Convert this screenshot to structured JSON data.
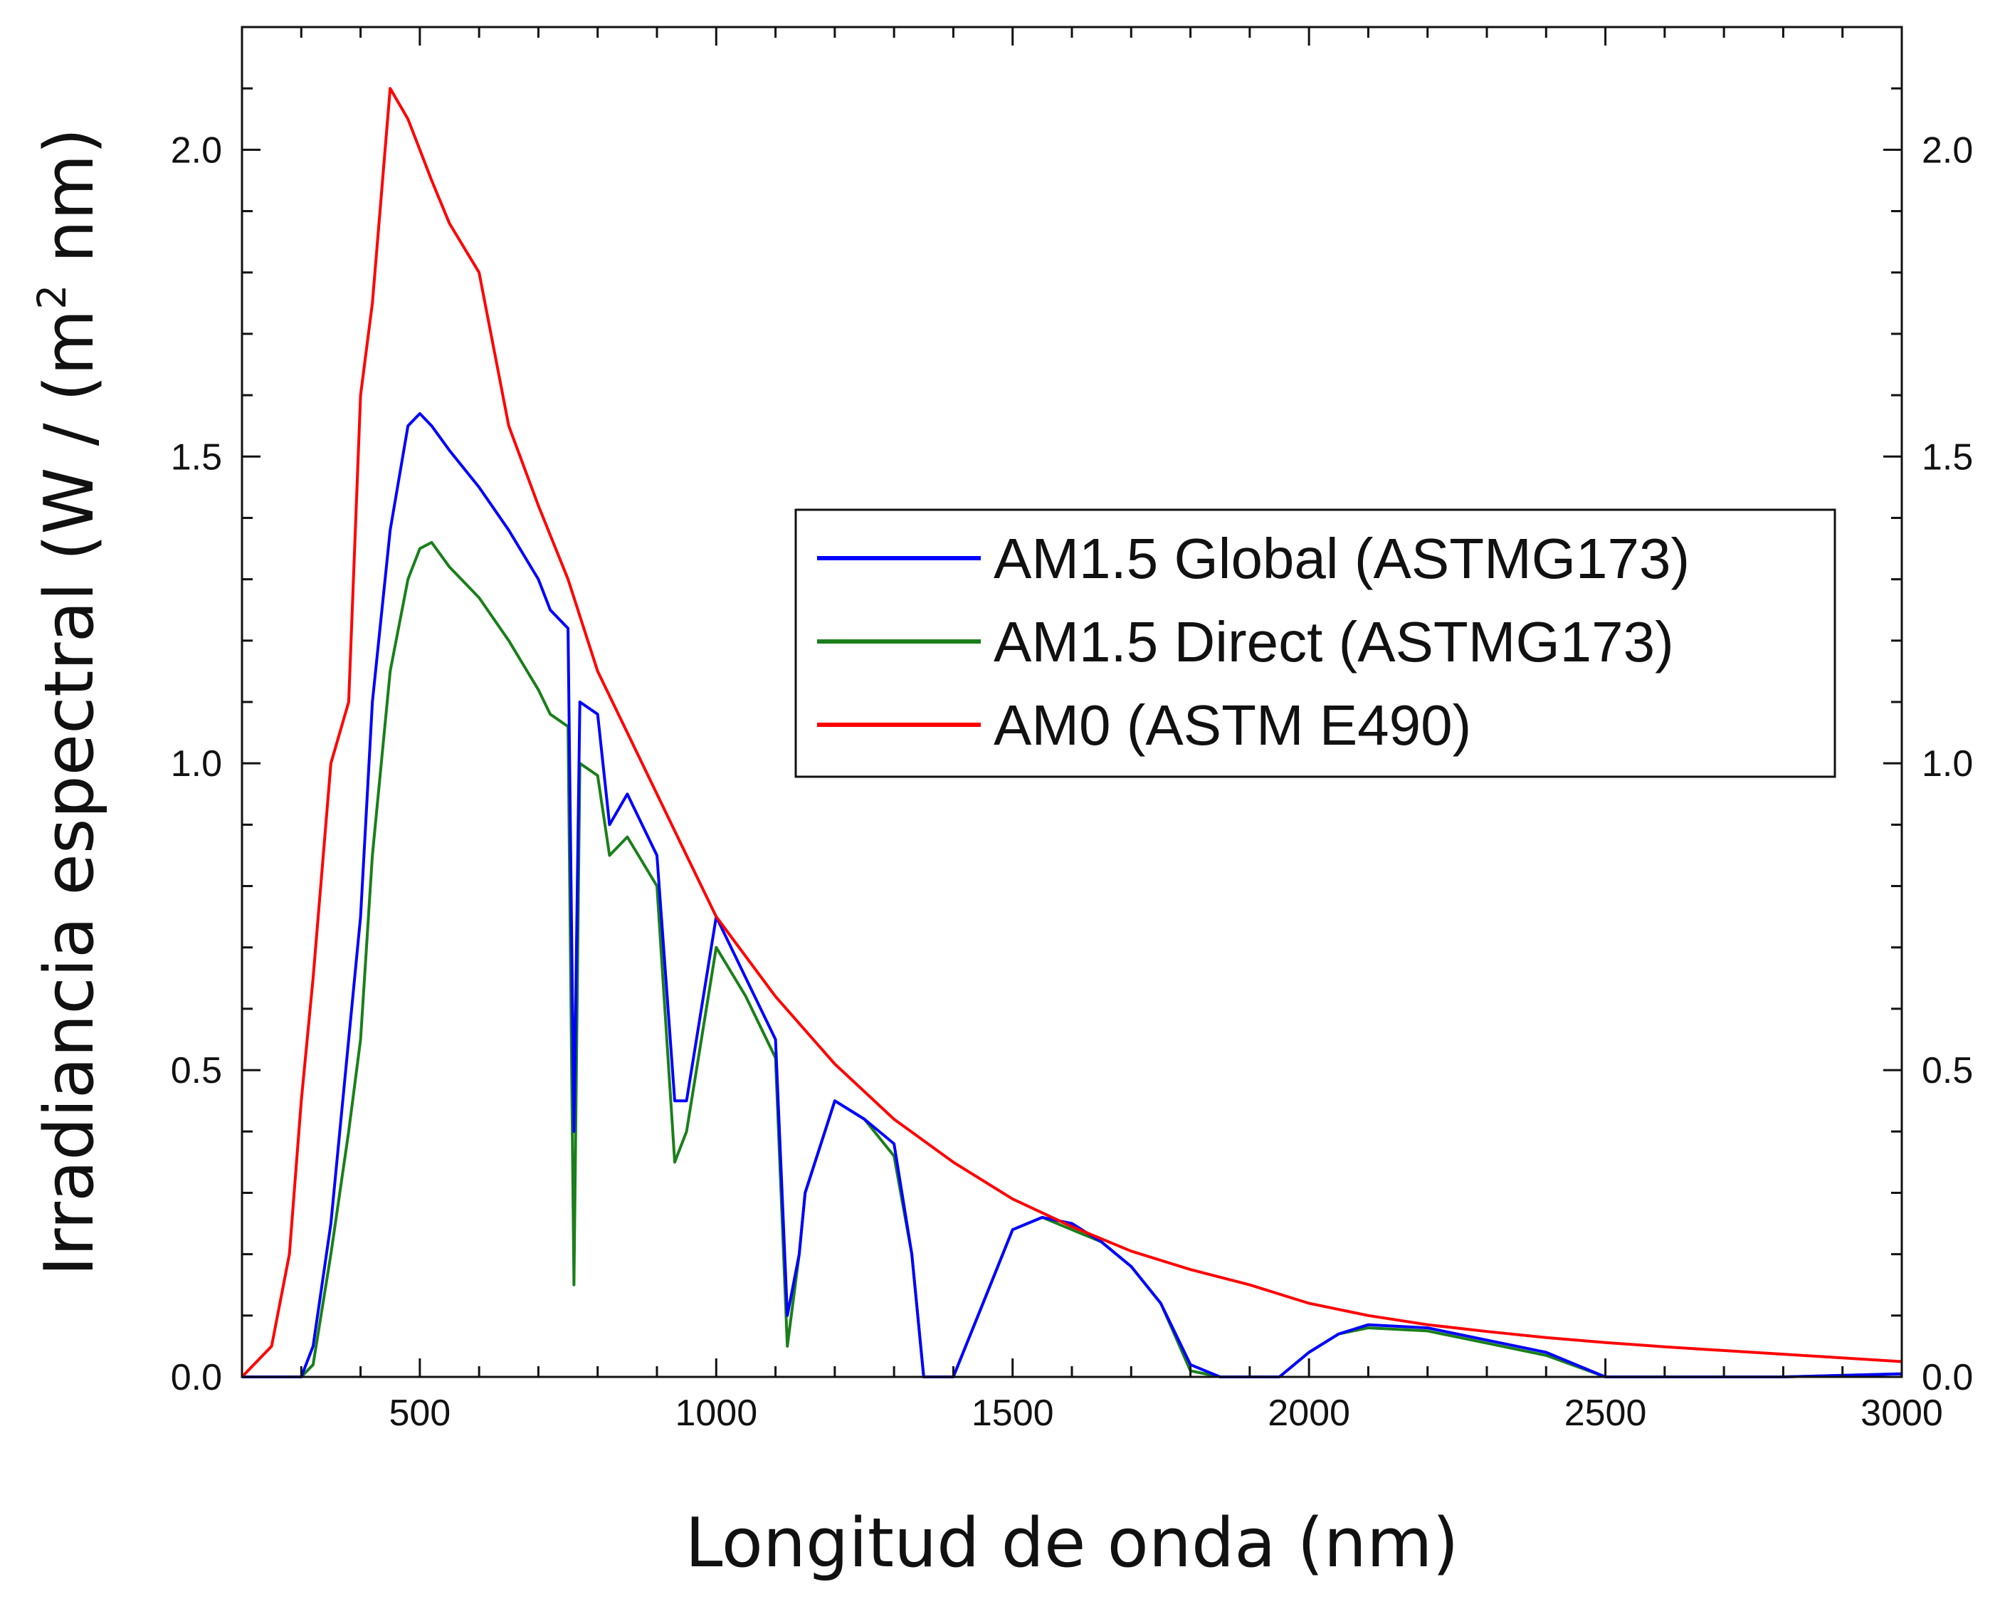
{
  "chart_data": {
    "type": "line",
    "xlabel": "Longitud de onda (nm)",
    "ylabel_main": "Irradiancia espectral (W / (m",
    "ylabel_sup": "2",
    "ylabel_end": " nm)",
    "xlim": [
      200,
      3000
    ],
    "ylim": [
      0,
      2.2
    ],
    "x_ticks": [
      500,
      1000,
      1500,
      2000,
      2500,
      3000
    ],
    "x_tick_labels": [
      "500",
      "1000",
      "1500",
      "2000",
      "2500",
      "3000"
    ],
    "y_ticks": [
      0.0,
      0.5,
      1.0,
      1.5,
      2.0
    ],
    "y_tick_labels": [
      "0.0",
      "0.5",
      "1.0",
      "1.5",
      "2.0"
    ],
    "y_tick_labels_right": [
      "0.0",
      "0.5",
      "1.0",
      "1.5",
      "2.0"
    ],
    "grid": false,
    "legend_position": "upper-right",
    "series": [
      {
        "name": "AM1.5 Global (ASTMG173)",
        "color": "#0000ff",
        "x": [
          200,
          280,
          300,
          320,
          350,
          380,
          400,
          420,
          450,
          480,
          500,
          520,
          550,
          600,
          650,
          700,
          720,
          750,
          760,
          770,
          800,
          820,
          850,
          900,
          930,
          950,
          1000,
          1050,
          1100,
          1120,
          1140,
          1150,
          1200,
          1250,
          1300,
          1330,
          1350,
          1400,
          1450,
          1500,
          1550,
          1600,
          1650,
          1700,
          1750,
          1800,
          1850,
          1900,
          1950,
          2000,
          2050,
          2100,
          2200,
          2300,
          2400,
          2500,
          2600,
          2800,
          3000
        ],
        "y": [
          0,
          0,
          0,
          0.05,
          0.25,
          0.55,
          0.75,
          1.1,
          1.38,
          1.55,
          1.57,
          1.55,
          1.51,
          1.45,
          1.38,
          1.3,
          1.25,
          1.22,
          0.4,
          1.1,
          1.08,
          0.9,
          0.95,
          0.85,
          0.45,
          0.45,
          0.75,
          0.65,
          0.55,
          0.1,
          0.2,
          0.3,
          0.45,
          0.42,
          0.38,
          0.2,
          0,
          0,
          0.12,
          0.24,
          0.26,
          0.25,
          0.22,
          0.18,
          0.12,
          0.02,
          0,
          0,
          0,
          0.04,
          0.07,
          0.085,
          0.08,
          0.06,
          0.04,
          0,
          0,
          0,
          0.005
        ]
      },
      {
        "name": "AM1.5 Direct (ASTMG173)",
        "color": "#1a7f1a",
        "x": [
          200,
          300,
          320,
          350,
          380,
          400,
          420,
          450,
          480,
          500,
          520,
          550,
          600,
          650,
          700,
          720,
          750,
          760,
          770,
          800,
          820,
          850,
          900,
          930,
          950,
          1000,
          1050,
          1100,
          1120,
          1140,
          1150,
          1200,
          1250,
          1300,
          1330,
          1350,
          1400,
          1450,
          1500,
          1550,
          1600,
          1650,
          1700,
          1750,
          1800,
          1850,
          1900,
          1950,
          2000,
          2050,
          2100,
          2200,
          2300,
          2400,
          2500,
          2600,
          2800,
          3000
        ],
        "y": [
          0,
          0,
          0.02,
          0.2,
          0.4,
          0.55,
          0.85,
          1.15,
          1.3,
          1.35,
          1.36,
          1.32,
          1.27,
          1.2,
          1.12,
          1.08,
          1.06,
          0.15,
          1.0,
          0.98,
          0.85,
          0.88,
          0.8,
          0.35,
          0.4,
          0.7,
          0.62,
          0.52,
          0.05,
          0.2,
          0.3,
          0.45,
          0.42,
          0.36,
          0.2,
          0,
          0,
          0.12,
          0.24,
          0.26,
          0.24,
          0.22,
          0.18,
          0.12,
          0.01,
          0,
          0,
          0,
          0.04,
          0.07,
          0.08,
          0.075,
          0.055,
          0.035,
          0,
          0,
          0,
          0.005
        ]
      },
      {
        "name": "AM0 (ASTM E490)",
        "color": "#ff0000",
        "x": [
          200,
          250,
          280,
          300,
          320,
          350,
          380,
          400,
          420,
          450,
          480,
          500,
          520,
          550,
          600,
          650,
          700,
          750,
          800,
          850,
          900,
          950,
          1000,
          1100,
          1200,
          1300,
          1400,
          1500,
          1600,
          1700,
          1800,
          1900,
          2000,
          2100,
          2200,
          2300,
          2400,
          2500,
          2600,
          2800,
          3000
        ],
        "y": [
          0,
          0.05,
          0.2,
          0.45,
          0.65,
          1.0,
          1.1,
          1.6,
          1.75,
          2.1,
          2.05,
          2.0,
          1.95,
          1.88,
          1.8,
          1.55,
          1.42,
          1.3,
          1.15,
          1.05,
          0.95,
          0.85,
          0.75,
          0.62,
          0.51,
          0.42,
          0.35,
          0.29,
          0.245,
          0.205,
          0.175,
          0.15,
          0.12,
          0.1,
          0.085,
          0.074,
          0.064,
          0.056,
          0.049,
          0.037,
          0.025
        ]
      }
    ]
  }
}
